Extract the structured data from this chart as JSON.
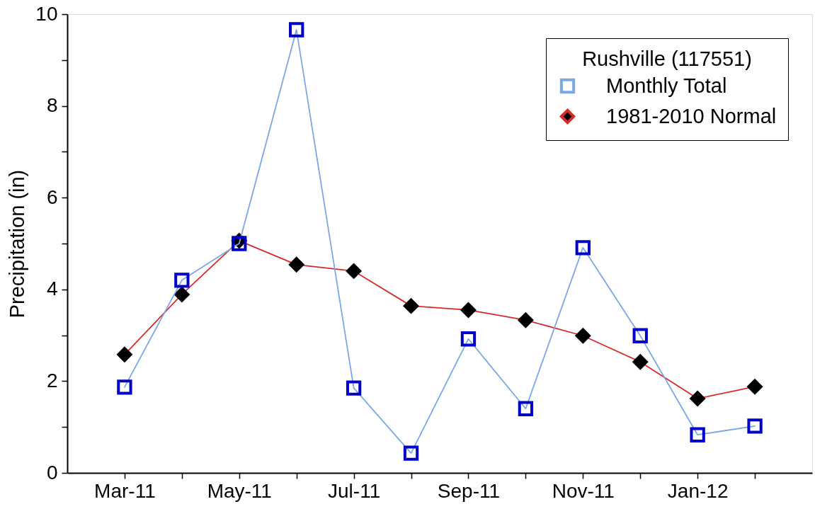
{
  "chart_data": {
    "type": "line",
    "ylabel": "Precipitation (in)",
    "legend_title": "Rushville (117551)",
    "categories": [
      "Mar-11",
      null,
      "May-11",
      null,
      "Jul-11",
      null,
      "Sep-11",
      null,
      "Nov-11",
      null,
      "Jan-12",
      null
    ],
    "series": [
      {
        "name": "Monthly Total",
        "color": "#7ba7e6",
        "marker": "square",
        "colors": [
          "#0000c8",
          "#0000c8",
          "#0000c8",
          "#0000c8",
          "#0000c8",
          "#0000c8",
          "#0000c8",
          "#0000c8",
          "#0000c8",
          "#0000c8",
          "#0000c8",
          "#0000c8"
        ],
        "values": [
          1.87,
          4.2,
          5.0,
          9.66,
          1.85,
          0.43,
          2.92,
          1.4,
          4.91,
          2.99,
          0.83,
          1.02
        ]
      },
      {
        "name": "1981-2010 Normal",
        "color": "#d42a2a",
        "marker": "diamond",
        "colors": [
          "#000000",
          "#000000",
          "#000000",
          "#000000",
          "#000000",
          "#000000",
          "#000000",
          "#000000",
          "#000000",
          "#000000",
          "#000000",
          "#000000"
        ],
        "values": [
          2.58,
          3.89,
          5.06,
          4.54,
          4.4,
          3.64,
          3.55,
          3.33,
          2.99,
          2.42,
          1.62,
          1.88
        ]
      }
    ],
    "ylim": [
      0,
      10
    ],
    "yticks": [
      0,
      {
        "value": 1,
        "label": null
      },
      2,
      {
        "value": 3,
        "label": null
      },
      4,
      {
        "value": 5,
        "label": null
      },
      6,
      {
        "value": 7,
        "label": null
      },
      8,
      {
        "value": 9,
        "label": null
      },
      10
    ],
    "grid": false,
    "legend": "top right",
    "line_style": "solid"
  }
}
